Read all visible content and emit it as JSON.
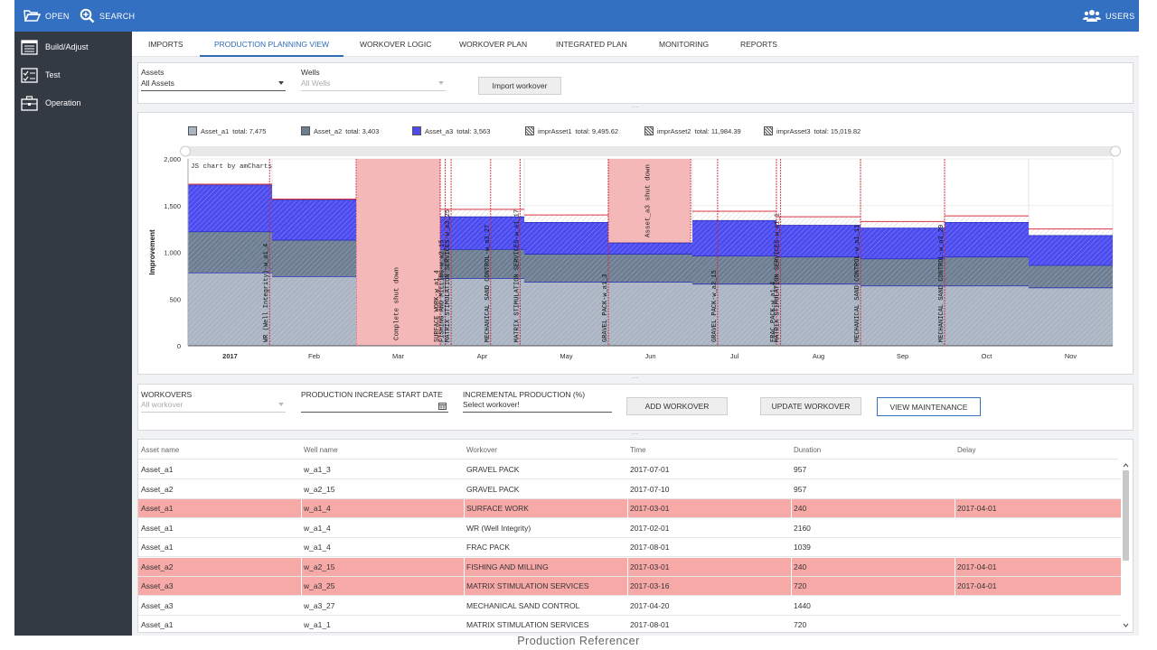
{
  "topbar": {
    "open_label": "OPEN",
    "search_label": "SEARCH",
    "users_label": "USERS"
  },
  "sidebar": {
    "items": [
      {
        "label": "Build/Adjust"
      },
      {
        "label": "Test"
      },
      {
        "label": "Operation"
      }
    ]
  },
  "tabs": [
    {
      "label": "IMPORTS"
    },
    {
      "label": "PRODUCTION PLANNING VIEW",
      "active": true
    },
    {
      "label": "WORKOVER LOGIC"
    },
    {
      "label": "WORKOVER PLAN"
    },
    {
      "label": "INTEGRATED PLAN"
    },
    {
      "label": "MONITORING"
    },
    {
      "label": "REPORTS"
    }
  ],
  "filters": {
    "assets_label": "Assets",
    "assets_value": "All Assets",
    "wells_label": "Wells",
    "wells_value": "All Wells",
    "import_button": "Import workover"
  },
  "separator": "...",
  "chart_data": {
    "type": "area",
    "watermark": "JS chart by amCharts",
    "ylabel": "Improvement",
    "ylim": [
      0,
      2000
    ],
    "yticks": [
      "0",
      "500",
      "1,000",
      "1,500",
      "2,000"
    ],
    "categories": [
      "2017",
      "Feb",
      "Mar",
      "Apr",
      "May",
      "Jun",
      "Jul",
      "Aug",
      "Sep",
      "Oct",
      "Nov"
    ],
    "legend": [
      {
        "name": "Asset_a1",
        "total": "total: 7,475",
        "color": "#aab4c3"
      },
      {
        "name": "Asset_a2",
        "total": "total: 3,403",
        "color": "#6d7e93"
      },
      {
        "name": "Asset_a3",
        "total": "total: 3,563",
        "color": "#4b4bf0"
      },
      {
        "name": "imprAsset1",
        "total": "total: 9,495.62",
        "pattern": true
      },
      {
        "name": "imprAsset2",
        "total": "total: 11,984.39",
        "pattern": true
      },
      {
        "name": "imprAsset3",
        "total": "total: 15,019.82",
        "pattern": true
      }
    ],
    "series": [
      {
        "name": "Asset_a1",
        "color": "#aab4c3",
        "steps": [
          [
            0,
            1,
            780
          ],
          [
            1,
            2,
            740
          ],
          [
            2,
            3,
            0
          ],
          [
            3,
            4,
            720
          ],
          [
            4,
            5,
            680
          ],
          [
            5,
            6,
            680
          ],
          [
            6,
            7,
            660
          ],
          [
            7,
            8,
            660
          ],
          [
            8,
            9,
            640
          ],
          [
            9,
            10,
            640
          ],
          [
            10,
            11,
            620
          ]
        ]
      },
      {
        "name": "Asset_a2",
        "color": "#6d7e93",
        "steps": [
          [
            0,
            1,
            1220
          ],
          [
            1,
            2,
            1130
          ],
          [
            2,
            3,
            0
          ],
          [
            3,
            4,
            1030
          ],
          [
            4,
            5,
            980
          ],
          [
            5,
            6,
            980
          ],
          [
            6,
            7,
            960
          ],
          [
            7,
            8,
            950
          ],
          [
            8,
            9,
            930
          ],
          [
            9,
            10,
            950
          ],
          [
            10,
            11,
            860
          ]
        ]
      },
      {
        "name": "Asset_a3",
        "color": "#4b4bf0",
        "steps": [
          [
            0,
            1,
            1720
          ],
          [
            1,
            2,
            1560
          ],
          [
            2,
            3,
            0
          ],
          [
            3,
            4,
            1380
          ],
          [
            4,
            5,
            1320
          ],
          [
            5,
            6,
            1100
          ],
          [
            6,
            7,
            1340
          ],
          [
            7,
            8,
            1290
          ],
          [
            8,
            9,
            1260
          ],
          [
            9,
            10,
            1320
          ],
          [
            10,
            11,
            1180
          ]
        ]
      },
      {
        "name": "imprAsset3",
        "color": "#dd3344",
        "pattern": true,
        "steps": [
          [
            0,
            1,
            1730
          ],
          [
            1,
            2,
            1570
          ],
          [
            2,
            3,
            0
          ],
          [
            3,
            4,
            1460
          ],
          [
            4,
            5,
            1400
          ],
          [
            5,
            6,
            1100
          ],
          [
            6,
            7,
            1440
          ],
          [
            7,
            8,
            1380
          ],
          [
            8,
            9,
            1330
          ],
          [
            9,
            10,
            1390
          ],
          [
            10,
            11,
            1250
          ]
        ]
      }
    ],
    "shutdowns": [
      {
        "x0": 2.0,
        "x1": 3.0,
        "label": "Complete shut down"
      },
      {
        "x0": 5.0,
        "x1": 5.98,
        "label": "Asset_a3 shut down"
      }
    ],
    "workovers": [
      {
        "x": 0.97,
        "label": "WR (Well Integrity)-w_a1_4"
      },
      {
        "x": 3.0,
        "label": "SURFACE WORK-w_a1_4"
      },
      {
        "x": 3.06,
        "label": "FISHING AND MILLING-w_a2_15"
      },
      {
        "x": 3.13,
        "label": "MATRIX STIMULATION SERVICES-w_a3_25"
      },
      {
        "x": 3.6,
        "label": "MECHANICAL SAND CONTROL-w_a3_27"
      },
      {
        "x": 3.95,
        "label": "MATRIX STIMULATION SERVICES-w_a1_17"
      },
      {
        "x": 5.0,
        "label": "GRAVEL PACK-w_a1_3"
      },
      {
        "x": 6.3,
        "label": "GRAVEL PACK-w_a2_15"
      },
      {
        "x": 7.0,
        "label": "FRAC PACK-w_a1_4"
      },
      {
        "x": 7.05,
        "label": "MATRIX STIMULATION SERVICES-w_a1_1"
      },
      {
        "x": 8.0,
        "label": "MECHANICAL SAND CONTROL-w_a1_11"
      },
      {
        "x": 9.0,
        "label": "MECHANICAL SAND CONTROL-w_a3_29"
      }
    ]
  },
  "workover_form": {
    "workovers_label": "WORKOVERS",
    "workovers_value": "All workover",
    "start_label": "PRODUCTION INCREASE START DATE",
    "start_value": "",
    "incr_label": "INCREMENTAL PRODUCTION (%)",
    "incr_value": "Select workover!",
    "add_button": "ADD WORKOVER",
    "update_button": "UPDATE WORKOVER",
    "maint_button": "VIEW MAINTENANCE"
  },
  "table": {
    "columns": [
      "Asset name",
      "Well name",
      "Workover",
      "Time",
      "Duration",
      "Delay"
    ],
    "rows": [
      {
        "cells": [
          "Asset_a1",
          "w_a1_3",
          "GRAVEL PACK",
          "2017-07-01",
          "957",
          ""
        ],
        "highlight": false
      },
      {
        "cells": [
          "Asset_a2",
          "w_a2_15",
          "GRAVEL PACK",
          "2017-07-10",
          "957",
          ""
        ],
        "highlight": false
      },
      {
        "cells": [
          "Asset_a1",
          "w_a1_4",
          "SURFACE WORK",
          "2017-03-01",
          "240",
          "2017-04-01"
        ],
        "highlight": true
      },
      {
        "cells": [
          "Asset_a1",
          "w_a1_4",
          "WR (Well Integrity)",
          "2017-02-01",
          "2160",
          ""
        ],
        "highlight": false
      },
      {
        "cells": [
          "Asset_a1",
          "w_a1_4",
          "FRAC PACK",
          "2017-08-01",
          "1039",
          ""
        ],
        "highlight": false
      },
      {
        "cells": [
          "Asset_a2",
          "w_a2_15",
          "FISHING AND MILLING",
          "2017-03-01",
          "240",
          "2017-04-01"
        ],
        "highlight": true
      },
      {
        "cells": [
          "Asset_a3",
          "w_a3_25",
          "MATRIX STIMULATION SERVICES",
          "2017-03-16",
          "720",
          "2017-04-01"
        ],
        "highlight": true
      },
      {
        "cells": [
          "Asset_a3",
          "w_a3_27",
          "MECHANICAL SAND CONTROL",
          "2017-04-20",
          "1440",
          ""
        ],
        "highlight": false
      },
      {
        "cells": [
          "Asset_a1",
          "w_a1_1",
          "MATRIX STIMULATION SERVICES",
          "2017-08-01",
          "720",
          ""
        ],
        "highlight": false
      }
    ]
  },
  "footer": {
    "caption": "Production Referencer"
  }
}
